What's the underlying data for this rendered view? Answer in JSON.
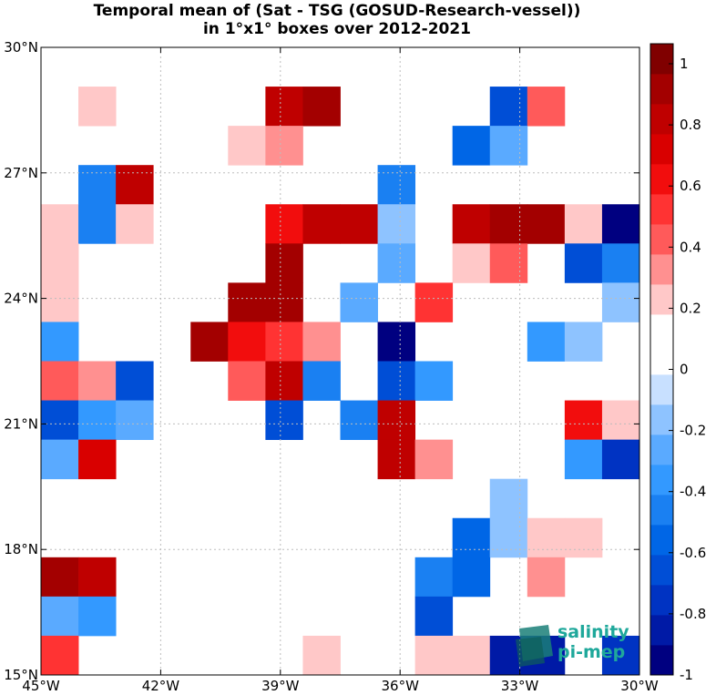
{
  "title_line1": "Temporal mean of (Sat - TSG (GOSUD-Research-vessel))",
  "title_line2": "in 1°x1° boxes over 2012-2021",
  "logo": {
    "line1": "salinity",
    "line2": "pi-mep",
    "color": "#1fa89b"
  },
  "chart_data": {
    "type": "heatmap",
    "x_ticks": [
      "45°W",
      "42°W",
      "39°W",
      "36°W",
      "33°W",
      "30°W"
    ],
    "y_ticks": [
      "30°N",
      "27°N",
      "24°N",
      "21°N",
      "18°N",
      "15°N"
    ],
    "lon_range": [
      -45,
      -30
    ],
    "lat_range": [
      15,
      30
    ],
    "grid": true,
    "colorbar": {
      "range": [
        -1,
        1
      ],
      "ticks": [
        "1",
        "0.8",
        "0.6",
        "0.4",
        "0.2",
        "0",
        "-0.2",
        "-0.4",
        "-0.6",
        "-0.8",
        "-1"
      ],
      "colors": [
        "#000080",
        "#001aa6",
        "#0033c2",
        "#004ed6",
        "#0066e6",
        "#1a80f2",
        "#3399ff",
        "#5aaaff",
        "#8ec3ff",
        "#c8e0ff",
        "#ffffff",
        "#ffffff",
        "#ffc8c8",
        "#ff9090",
        "#ff5a5a",
        "#ff3333",
        "#f20d0d",
        "#d90000",
        "#bf0000",
        "#a30000",
        "#800000"
      ]
    },
    "cells": [
      {
        "lon": -44,
        "lat": 29,
        "value": 0.15
      },
      {
        "lon": -39,
        "lat": 29,
        "value": 0.75
      },
      {
        "lon": -38,
        "lat": 29,
        "value": 0.85
      },
      {
        "lon": -33,
        "lat": 29,
        "value": -0.7
      },
      {
        "lon": -32,
        "lat": 29,
        "value": 0.4
      },
      {
        "lon": -40,
        "lat": 28,
        "value": 0.15
      },
      {
        "lon": -39,
        "lat": 28,
        "value": 0.3
      },
      {
        "lon": -34,
        "lat": 28,
        "value": -0.6
      },
      {
        "lon": -33,
        "lat": 28,
        "value": -0.25
      },
      {
        "lon": -44,
        "lat": 27,
        "value": -0.45
      },
      {
        "lon": -43,
        "lat": 27,
        "value": 0.75
      },
      {
        "lon": -36,
        "lat": 27,
        "value": -0.45
      },
      {
        "lon": -45,
        "lat": 26,
        "value": 0.15
      },
      {
        "lon": -44,
        "lat": 26,
        "value": -0.5
      },
      {
        "lon": -43,
        "lat": 26,
        "value": 0.15
      },
      {
        "lon": -39,
        "lat": 26,
        "value": 0.6
      },
      {
        "lon": -38,
        "lat": 26,
        "value": 0.8
      },
      {
        "lon": -37,
        "lat": 26,
        "value": 0.75
      },
      {
        "lon": -36,
        "lat": 26,
        "value": -0.15
      },
      {
        "lon": -34,
        "lat": 26,
        "value": 0.8
      },
      {
        "lon": -33,
        "lat": 26,
        "value": 0.9
      },
      {
        "lon": -32,
        "lat": 26,
        "value": 0.9
      },
      {
        "lon": -31,
        "lat": 26,
        "value": 0.15
      },
      {
        "lon": -30,
        "lat": 26,
        "value": -0.95
      },
      {
        "lon": -45,
        "lat": 25,
        "value": 0.15
      },
      {
        "lon": -39,
        "lat": 25,
        "value": 0.9
      },
      {
        "lon": -36,
        "lat": 25,
        "value": -0.3
      },
      {
        "lon": -34,
        "lat": 25,
        "value": 0.15
      },
      {
        "lon": -33,
        "lat": 25,
        "value": 0.4
      },
      {
        "lon": -31,
        "lat": 25,
        "value": -0.7
      },
      {
        "lon": -30,
        "lat": 25,
        "value": -0.45
      },
      {
        "lon": -45,
        "lat": 24,
        "value": 0.15
      },
      {
        "lon": -40,
        "lat": 24,
        "value": 0.9
      },
      {
        "lon": -39,
        "lat": 24,
        "value": 0.85
      },
      {
        "lon": -37,
        "lat": 24,
        "value": -0.3
      },
      {
        "lon": -35,
        "lat": 24,
        "value": 0.5
      },
      {
        "lon": -30,
        "lat": 24,
        "value": -0.15
      },
      {
        "lon": -45,
        "lat": 23,
        "value": -0.35
      },
      {
        "lon": -41,
        "lat": 23,
        "value": 0.85
      },
      {
        "lon": -40,
        "lat": 23,
        "value": 0.6
      },
      {
        "lon": -39,
        "lat": 23,
        "value": 0.5
      },
      {
        "lon": -38,
        "lat": 23,
        "value": 0.3
      },
      {
        "lon": -36,
        "lat": 23,
        "value": -1.0
      },
      {
        "lon": -32,
        "lat": 23,
        "value": -0.4
      },
      {
        "lon": -31,
        "lat": 23,
        "value": -0.15
      },
      {
        "lon": -45,
        "lat": 22,
        "value": 0.4
      },
      {
        "lon": -44,
        "lat": 22,
        "value": 0.3
      },
      {
        "lon": -43,
        "lat": 22,
        "value": -0.65
      },
      {
        "lon": -40,
        "lat": 22,
        "value": 0.4
      },
      {
        "lon": -39,
        "lat": 22,
        "value": 0.8
      },
      {
        "lon": -38,
        "lat": 22,
        "value": -0.5
      },
      {
        "lon": -36,
        "lat": 22,
        "value": -0.65
      },
      {
        "lon": -35,
        "lat": 22,
        "value": -0.4
      },
      {
        "lon": -45,
        "lat": 21,
        "value": -0.65
      },
      {
        "lon": -44,
        "lat": 21,
        "value": -0.4
      },
      {
        "lon": -43,
        "lat": 21,
        "value": -0.3
      },
      {
        "lon": -39,
        "lat": 21,
        "value": -0.65
      },
      {
        "lon": -37,
        "lat": 21,
        "value": -0.5
      },
      {
        "lon": -36,
        "lat": 21,
        "value": 0.75
      },
      {
        "lon": -31,
        "lat": 21,
        "value": 0.6
      },
      {
        "lon": -30,
        "lat": 21,
        "value": 0.15
      },
      {
        "lon": -45,
        "lat": 20,
        "value": -0.3
      },
      {
        "lon": -44,
        "lat": 20,
        "value": 0.65
      },
      {
        "lon": -36,
        "lat": 20,
        "value": 0.8
      },
      {
        "lon": -35,
        "lat": 20,
        "value": 0.3
      },
      {
        "lon": -31,
        "lat": 20,
        "value": -0.4
      },
      {
        "lon": -30,
        "lat": 20,
        "value": -0.8
      },
      {
        "lon": -33,
        "lat": 19,
        "value": -0.15
      },
      {
        "lon": -34,
        "lat": 18,
        "value": -0.6
      },
      {
        "lon": -33,
        "lat": 18,
        "value": -0.15
      },
      {
        "lon": -32,
        "lat": 18,
        "value": 0.15
      },
      {
        "lon": -31,
        "lat": 18,
        "value": 0.15
      },
      {
        "lon": -45,
        "lat": 17,
        "value": 0.85
      },
      {
        "lon": -44,
        "lat": 17,
        "value": 0.75
      },
      {
        "lon": -35,
        "lat": 17,
        "value": -0.5
      },
      {
        "lon": -34,
        "lat": 17,
        "value": -0.6
      },
      {
        "lon": -32,
        "lat": 17,
        "value": 0.3
      },
      {
        "lon": -45,
        "lat": 16,
        "value": -0.3
      },
      {
        "lon": -44,
        "lat": 16,
        "value": -0.4
      },
      {
        "lon": -35,
        "lat": 16,
        "value": -0.65
      },
      {
        "lon": -45,
        "lat": 15,
        "value": 0.5
      },
      {
        "lon": -38,
        "lat": 15,
        "value": 0.15
      },
      {
        "lon": -35,
        "lat": 15,
        "value": 0.15
      },
      {
        "lon": -34,
        "lat": 15,
        "value": 0.15
      },
      {
        "lon": -33,
        "lat": 15,
        "value": -0.9
      },
      {
        "lon": -32,
        "lat": 15,
        "value": -0.9
      },
      {
        "lon": -30,
        "lat": 15,
        "value": -0.75
      }
    ]
  }
}
